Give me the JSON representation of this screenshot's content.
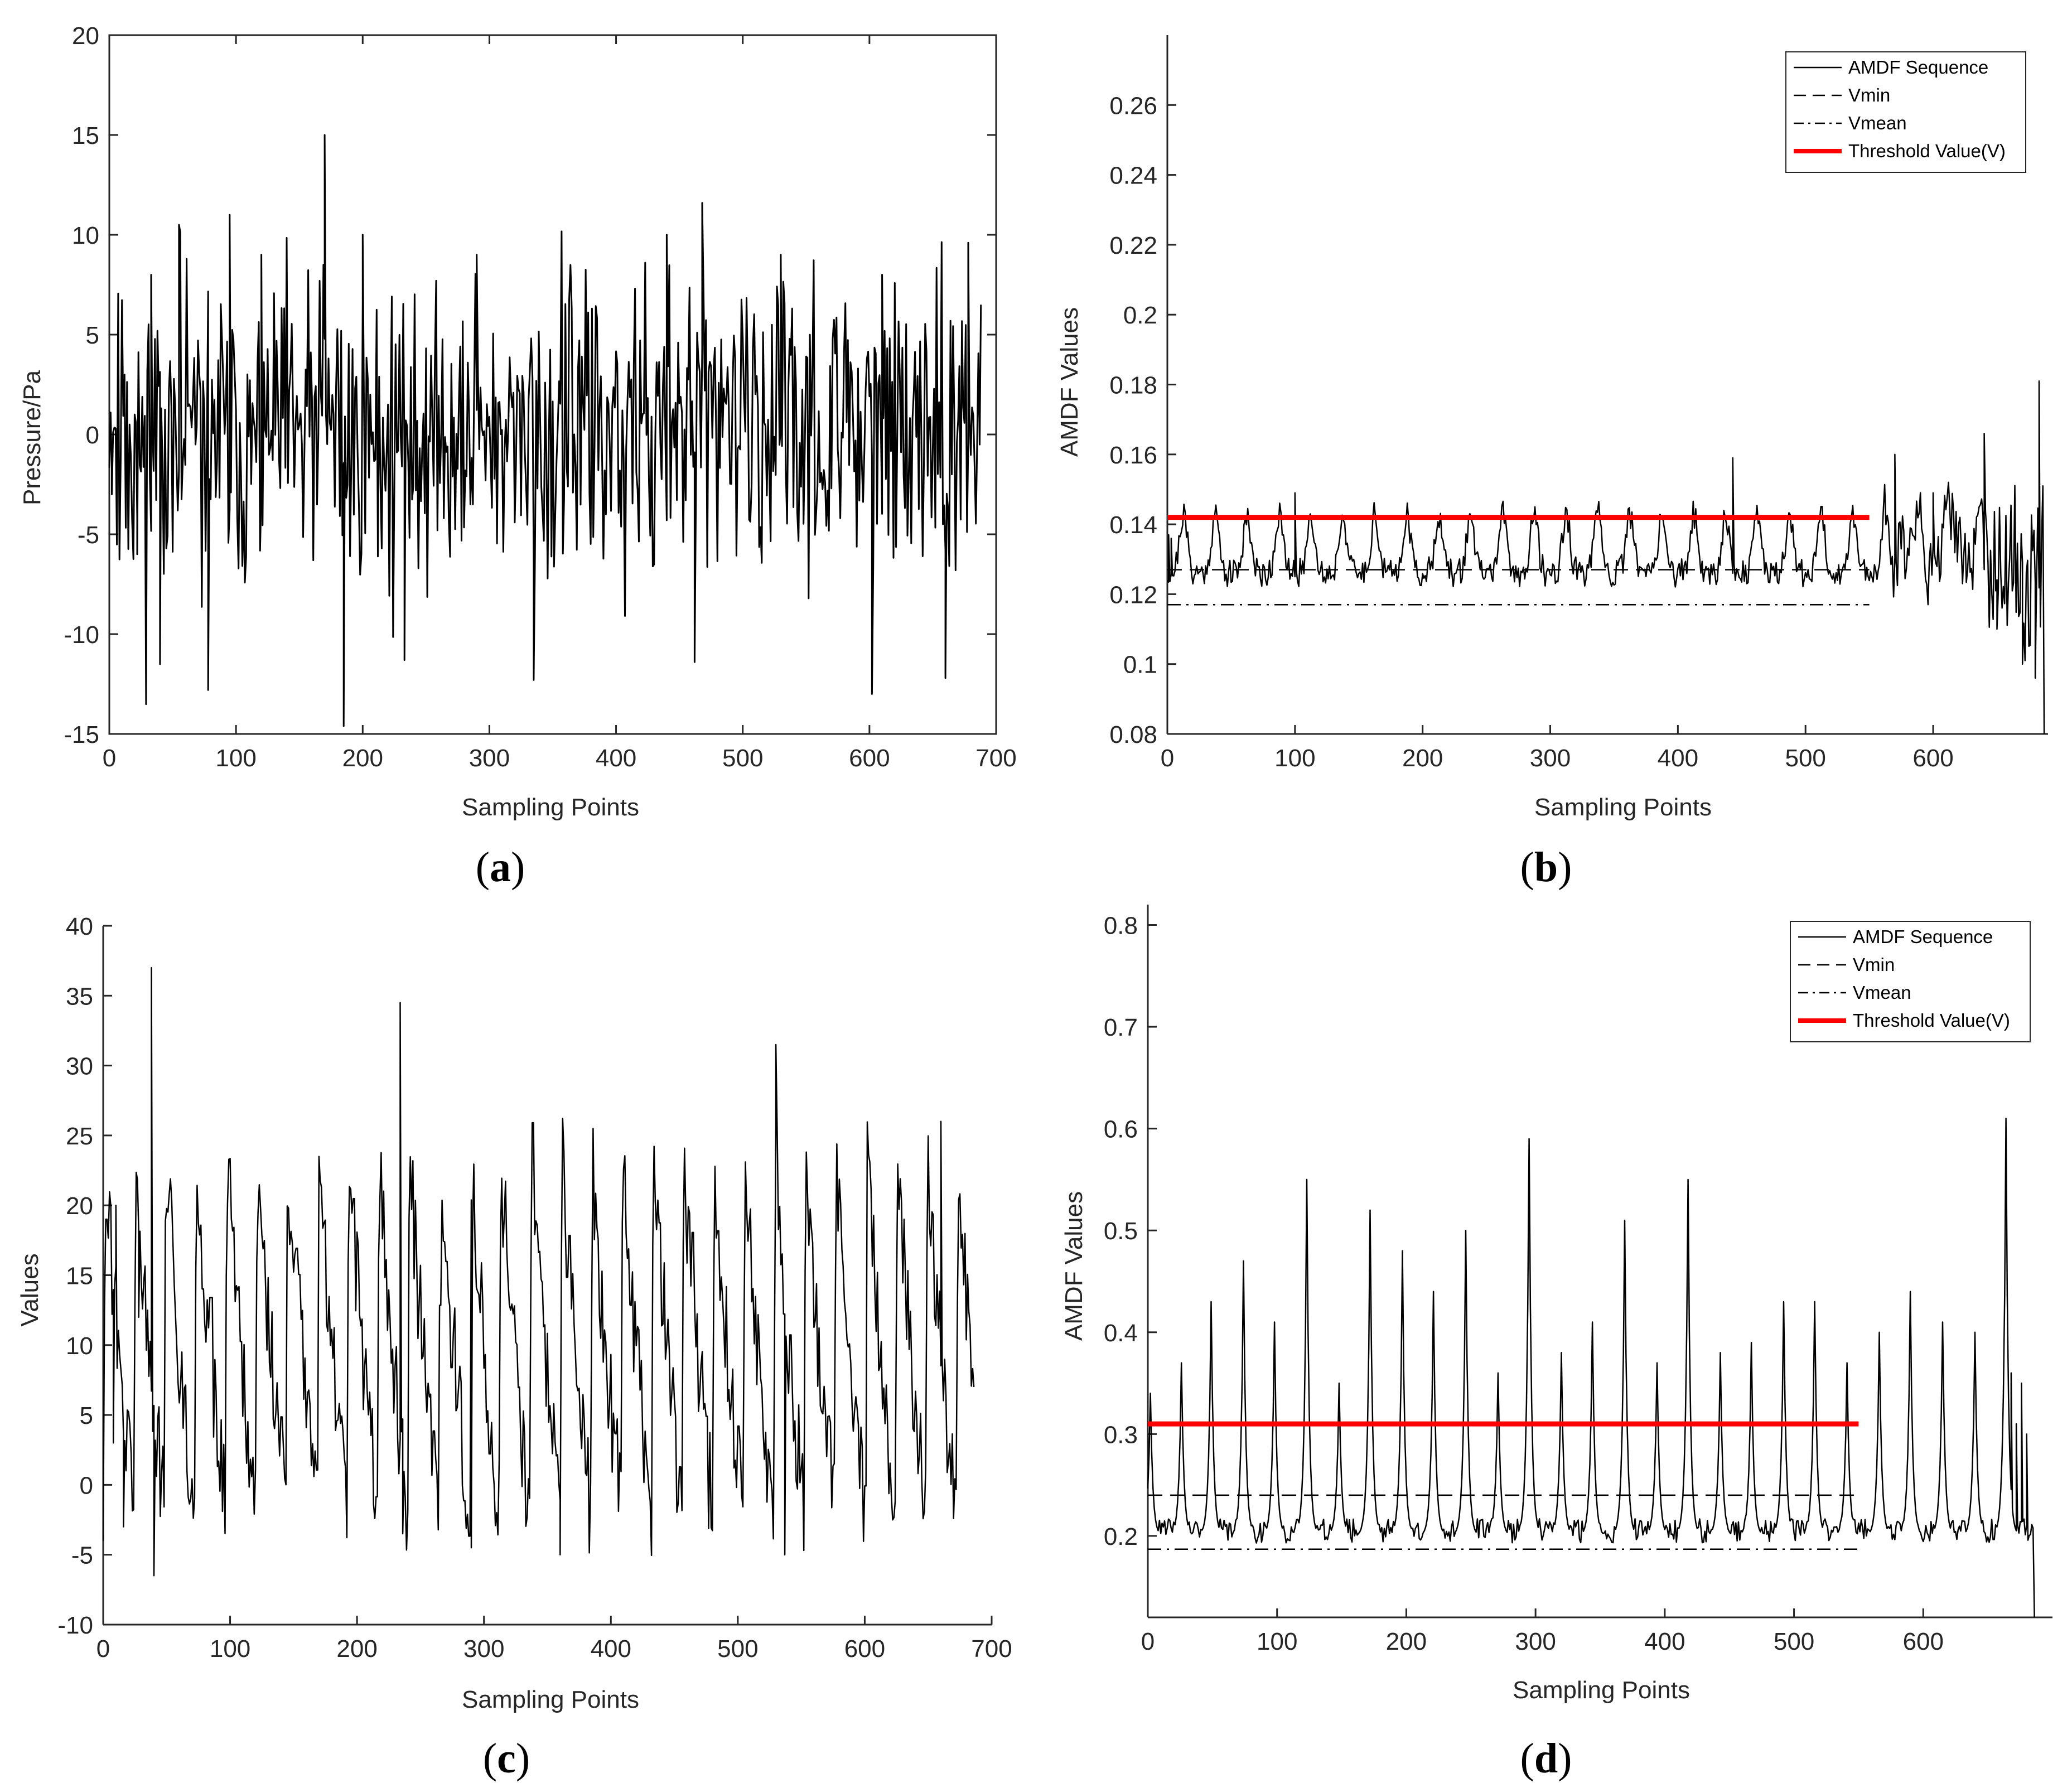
{
  "colors": {
    "series": "#000000",
    "threshold": "#ff0000",
    "axis": "#262626",
    "background": "#ffffff"
  },
  "chart_data": [
    {
      "id": "a",
      "type": "line",
      "panel_label": "a",
      "xlabel": "Sampling Points",
      "ylabel": "Pressure/Pa",
      "xlim": [
        0,
        700
      ],
      "ylim": [
        -15,
        20
      ],
      "xticks": [
        0,
        100,
        200,
        300,
        400,
        500,
        600,
        700
      ],
      "yticks": [
        -15,
        -10,
        -5,
        0,
        5,
        10,
        15,
        20
      ],
      "ytick_labels": [
        "-15",
        "-10",
        "-5",
        "0",
        "5",
        "10",
        "15",
        "20"
      ],
      "box": true,
      "series": [
        {
          "name": "Pressure",
          "style": "solid",
          "color": "#000000",
          "width": 3,
          "generator": "noise",
          "seed": 11,
          "n": 688,
          "center": 0,
          "amp": 4.6,
          "clip": [
            -14.8,
            15.2
          ],
          "points": [
            [
              2,
              -3
            ],
            [
              12,
              3
            ],
            [
              22,
              -6
            ],
            [
              33,
              8
            ],
            [
              40,
              -11.5
            ],
            [
              55,
              10.5
            ],
            [
              78,
              -12.8
            ],
            [
              95,
              11
            ],
            [
              120,
              9
            ],
            [
              170,
              15
            ],
            [
              185,
              -14.6
            ],
            [
              200,
              10
            ],
            [
              233,
              -11.3
            ],
            [
              290,
              9
            ],
            [
              335,
              -12.3
            ],
            [
              440,
              10
            ],
            [
              462,
              -11.4
            ],
            [
              468,
              11.6
            ],
            [
              530,
              9
            ],
            [
              602,
              -13
            ],
            [
              610,
              8
            ],
            [
              660,
              -12.2
            ],
            [
              678,
              9.6
            ],
            [
              688,
              6.5
            ]
          ]
        }
      ]
    },
    {
      "id": "b",
      "type": "line",
      "panel_label": "b",
      "xlabel": "Sampling Points",
      "ylabel": "AMDF Values",
      "xlim": [
        0,
        690
      ],
      "ylim": [
        0.08,
        0.28
      ],
      "xticks": [
        0,
        100,
        200,
        300,
        400,
        500,
        600
      ],
      "yticks": [
        0.08,
        0.1,
        0.12,
        0.14,
        0.16,
        0.18,
        0.2,
        0.22,
        0.24,
        0.26
      ],
      "ytick_labels": [
        "0.08",
        "0.1",
        "0.12",
        "0.14",
        "0.16",
        "0.18",
        "0.2",
        "0.22",
        "0.24",
        "0.26"
      ],
      "box": false,
      "legend": {
        "placement": "top-right",
        "entries": [
          {
            "label": "AMDF Sequence",
            "style": "solid",
            "color": "#000000"
          },
          {
            "label": "Vmin",
            "style": "dashed",
            "color": "#000000"
          },
          {
            "label": "Vmean",
            "style": "dashdot",
            "color": "#000000"
          },
          {
            "label": "Threshold Value(V)",
            "style": "solid",
            "color": "#ff0000"
          }
        ]
      },
      "series": [
        {
          "name": "AMDF Sequence",
          "style": "solid",
          "color": "#000000",
          "width": 2.5,
          "generator": "amdf",
          "seed": 21,
          "n": 686,
          "start": 0.08,
          "base": 0.126,
          "noise": 0.004,
          "period": 25,
          "peak": 0.017,
          "points": [
            [
              1,
              0.137
            ],
            [
              3,
              0.136
            ],
            [
              100,
              0.149
            ],
            [
              443,
              0.159
            ],
            [
              570,
              0.16
            ],
            [
              600,
              0.149
            ],
            [
              640,
              0.166
            ],
            [
              650,
              0.11
            ],
            [
              670,
              0.1
            ],
            [
              680,
              0.096
            ],
            [
              683,
              0.181
            ],
            [
              686,
              0.151
            ],
            [
              687,
              0.08
            ]
          ]
        },
        {
          "name": "Vmin",
          "style": "dashed",
          "color": "#000000",
          "width": 2.5,
          "generator": "hline",
          "x": [
            0,
            550
          ],
          "y": 0.127
        },
        {
          "name": "Vmean",
          "style": "dashdot",
          "color": "#000000",
          "width": 2.5,
          "generator": "hline",
          "x": [
            0,
            550
          ],
          "y": 0.117
        },
        {
          "name": "Threshold Value(V)",
          "style": "solid",
          "color": "#ff0000",
          "width": 9,
          "generator": "hline",
          "x": [
            0,
            550
          ],
          "y": 0.142
        }
      ]
    },
    {
      "id": "c",
      "type": "line",
      "panel_label": "c",
      "xlabel": "Sampling Points",
      "ylabel": "Values",
      "xlim": [
        0,
        700
      ],
      "ylim": [
        -10,
        40
      ],
      "xticks": [
        0,
        100,
        200,
        300,
        400,
        500,
        600,
        700
      ],
      "yticks": [
        -10,
        -5,
        0,
        5,
        10,
        15,
        20,
        25,
        30,
        35,
        40
      ],
      "ytick_labels": [
        "-10",
        "-5",
        "0",
        "5",
        "10",
        "15",
        "20",
        "25",
        "30",
        "35",
        "40"
      ],
      "box": false,
      "series": [
        {
          "name": "Values",
          "style": "solid",
          "color": "#000000",
          "width": 2.5,
          "generator": "cycles",
          "seed": 31,
          "n": 686,
          "start": 8,
          "period": 24,
          "low": -2,
          "high": 24,
          "points": [
            [
              8,
              3
            ],
            [
              10,
              20
            ],
            [
              16,
              -3
            ],
            [
              28,
              12
            ],
            [
              38,
              37
            ],
            [
              40,
              -6.5
            ],
            [
              234,
              34.5
            ],
            [
              236,
              -3.5
            ],
            [
              290,
              -4.5
            ],
            [
              360,
              -5
            ],
            [
              530,
              31.5
            ],
            [
              537,
              -5
            ],
            [
              660,
              26
            ],
            [
              686,
              7
            ]
          ]
        }
      ]
    },
    {
      "id": "d",
      "type": "line",
      "panel_label": "d",
      "xlabel": "Sampling Points",
      "ylabel": "AMDF Values",
      "xlim": [
        0,
        700
      ],
      "ylim": [
        0.12,
        0.82
      ],
      "xticks": [
        0,
        100,
        200,
        300,
        400,
        500,
        600
      ],
      "yticks": [
        0.2,
        0.3,
        0.4,
        0.5,
        0.6,
        0.7,
        0.8
      ],
      "ytick_labels": [
        "0.2",
        "0.3",
        "0.4",
        "0.5",
        "0.6",
        "0.7",
        "0.8"
      ],
      "box": false,
      "legend": {
        "placement": "top-right",
        "entries": [
          {
            "label": "AMDF Sequence",
            "style": "solid",
            "color": "#000000"
          },
          {
            "label": "Vmin",
            "style": "dashed",
            "color": "#000000"
          },
          {
            "label": "Vmean",
            "style": "dashdot",
            "color": "#000000"
          },
          {
            "label": "Threshold Value(V)",
            "style": "solid",
            "color": "#ff0000"
          }
        ]
      },
      "series": [
        {
          "name": "AMDF Sequence",
          "style": "solid",
          "color": "#000000",
          "width": 2.5,
          "generator": "amdf_peaks",
          "seed": 41,
          "n": 686,
          "base": 0.2,
          "noise": 0.012,
          "peaks": [
            [
              2,
              0.34
            ],
            [
              26,
              0.37
            ],
            [
              49,
              0.43
            ],
            [
              74,
              0.47
            ],
            [
              98,
              0.41
            ],
            [
              123,
              0.55
            ],
            [
              148,
              0.35
            ],
            [
              172,
              0.52
            ],
            [
              197,
              0.48
            ],
            [
              221,
              0.44
            ],
            [
              246,
              0.5
            ],
            [
              271,
              0.36
            ],
            [
              295,
              0.59
            ],
            [
              320,
              0.38
            ],
            [
              344,
              0.41
            ],
            [
              369,
              0.51
            ],
            [
              394,
              0.37
            ],
            [
              418,
              0.55
            ],
            [
              443,
              0.38
            ],
            [
              467,
              0.39
            ],
            [
              492,
              0.43
            ],
            [
              516,
              0.43
            ],
            [
              541,
              0.37
            ],
            [
              566,
              0.4
            ],
            [
              590,
              0.44
            ],
            [
              615,
              0.41
            ],
            [
              640,
              0.4
            ],
            [
              664,
              0.61
            ]
          ],
          "tail": [
            [
              668,
              0.36
            ],
            [
              672,
              0.31
            ],
            [
              676,
              0.35
            ],
            [
              680,
              0.3
            ],
            [
              686,
              0.12
            ]
          ]
        },
        {
          "name": "Vmin",
          "style": "dashed",
          "color": "#000000",
          "width": 2.5,
          "generator": "hline",
          "x": [
            0,
            550
          ],
          "y": 0.24
        },
        {
          "name": "Vmean",
          "style": "dashdot",
          "color": "#000000",
          "width": 2.5,
          "generator": "hline",
          "x": [
            0,
            550
          ],
          "y": 0.187
        },
        {
          "name": "Threshold Value(V)",
          "style": "solid",
          "color": "#ff0000",
          "width": 9,
          "generator": "hline",
          "x": [
            0,
            550
          ],
          "y": 0.31
        }
      ]
    }
  ]
}
